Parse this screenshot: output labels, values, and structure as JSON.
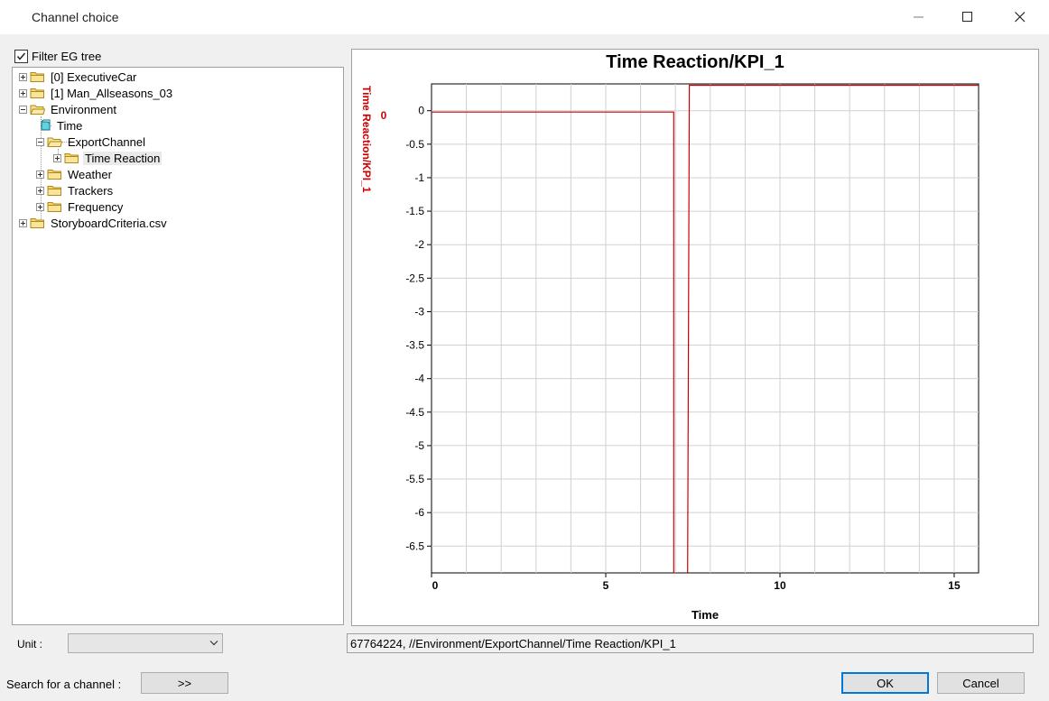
{
  "window": {
    "title": "Channel choice"
  },
  "tree": {
    "filter_label": "Filter EG tree",
    "filter_checked": true,
    "items": [
      {
        "label": "[0] ExecutiveCar",
        "expander": "plus",
        "icon": "folder-icon"
      },
      {
        "label": "[1] Man_Allseasons_03",
        "expander": "plus",
        "icon": "folder-icon"
      },
      {
        "label": "Environment",
        "expander": "minus",
        "icon": "folder-open-icon"
      },
      {
        "label": "Time",
        "expander": "none",
        "icon": "channel-icon"
      },
      {
        "label": "ExportChannel",
        "expander": "minus",
        "icon": "folder-open-icon"
      },
      {
        "label": "Time Reaction",
        "expander": "plus",
        "icon": "folder-icon",
        "selected": true
      },
      {
        "label": "Weather",
        "expander": "plus",
        "icon": "folder-icon"
      },
      {
        "label": "Trackers",
        "expander": "plus",
        "icon": "folder-icon"
      },
      {
        "label": "Frequency",
        "expander": "plus",
        "icon": "folder-icon"
      },
      {
        "label": "StoryboardCriteria.csv",
        "expander": "plus",
        "icon": "folder-icon"
      }
    ]
  },
  "chart_data": {
    "type": "line",
    "title": "Time Reaction/KPI_1",
    "xlabel": "Time",
    "ylabel": "Time Reaction/KPI_1",
    "axis_value_label": "0",
    "xlim": [
      0,
      15.7
    ],
    "ylim": [
      -6.9,
      0.4
    ],
    "x_ticks": [
      0,
      5,
      10,
      15
    ],
    "y_ticks": [
      0,
      -0.5,
      -1,
      -1.5,
      -2,
      -2.5,
      -3,
      -3.5,
      -4,
      -4.5,
      -5,
      -5.5,
      -6,
      -6.5
    ],
    "grid": true,
    "line_color": "#cc0000",
    "series": [
      {
        "points": [
          [
            0,
            -0.02
          ],
          [
            6.95,
            -0.02
          ],
          [
            6.95,
            -6.9
          ],
          [
            7.0,
            -6.9
          ]
        ]
      },
      {
        "points": [
          [
            7.35,
            -6.9
          ],
          [
            7.4,
            0.38
          ],
          [
            15.7,
            0.38
          ]
        ]
      }
    ]
  },
  "bottom": {
    "unit_label": "Unit :",
    "unit_value": "",
    "path_value": "67764224, //Environment/ExportChannel/Time Reaction/KPI_1",
    "search_label": "Search for a channel :",
    "search_button": ">>",
    "ok_button": "OK",
    "cancel_button": "Cancel"
  }
}
